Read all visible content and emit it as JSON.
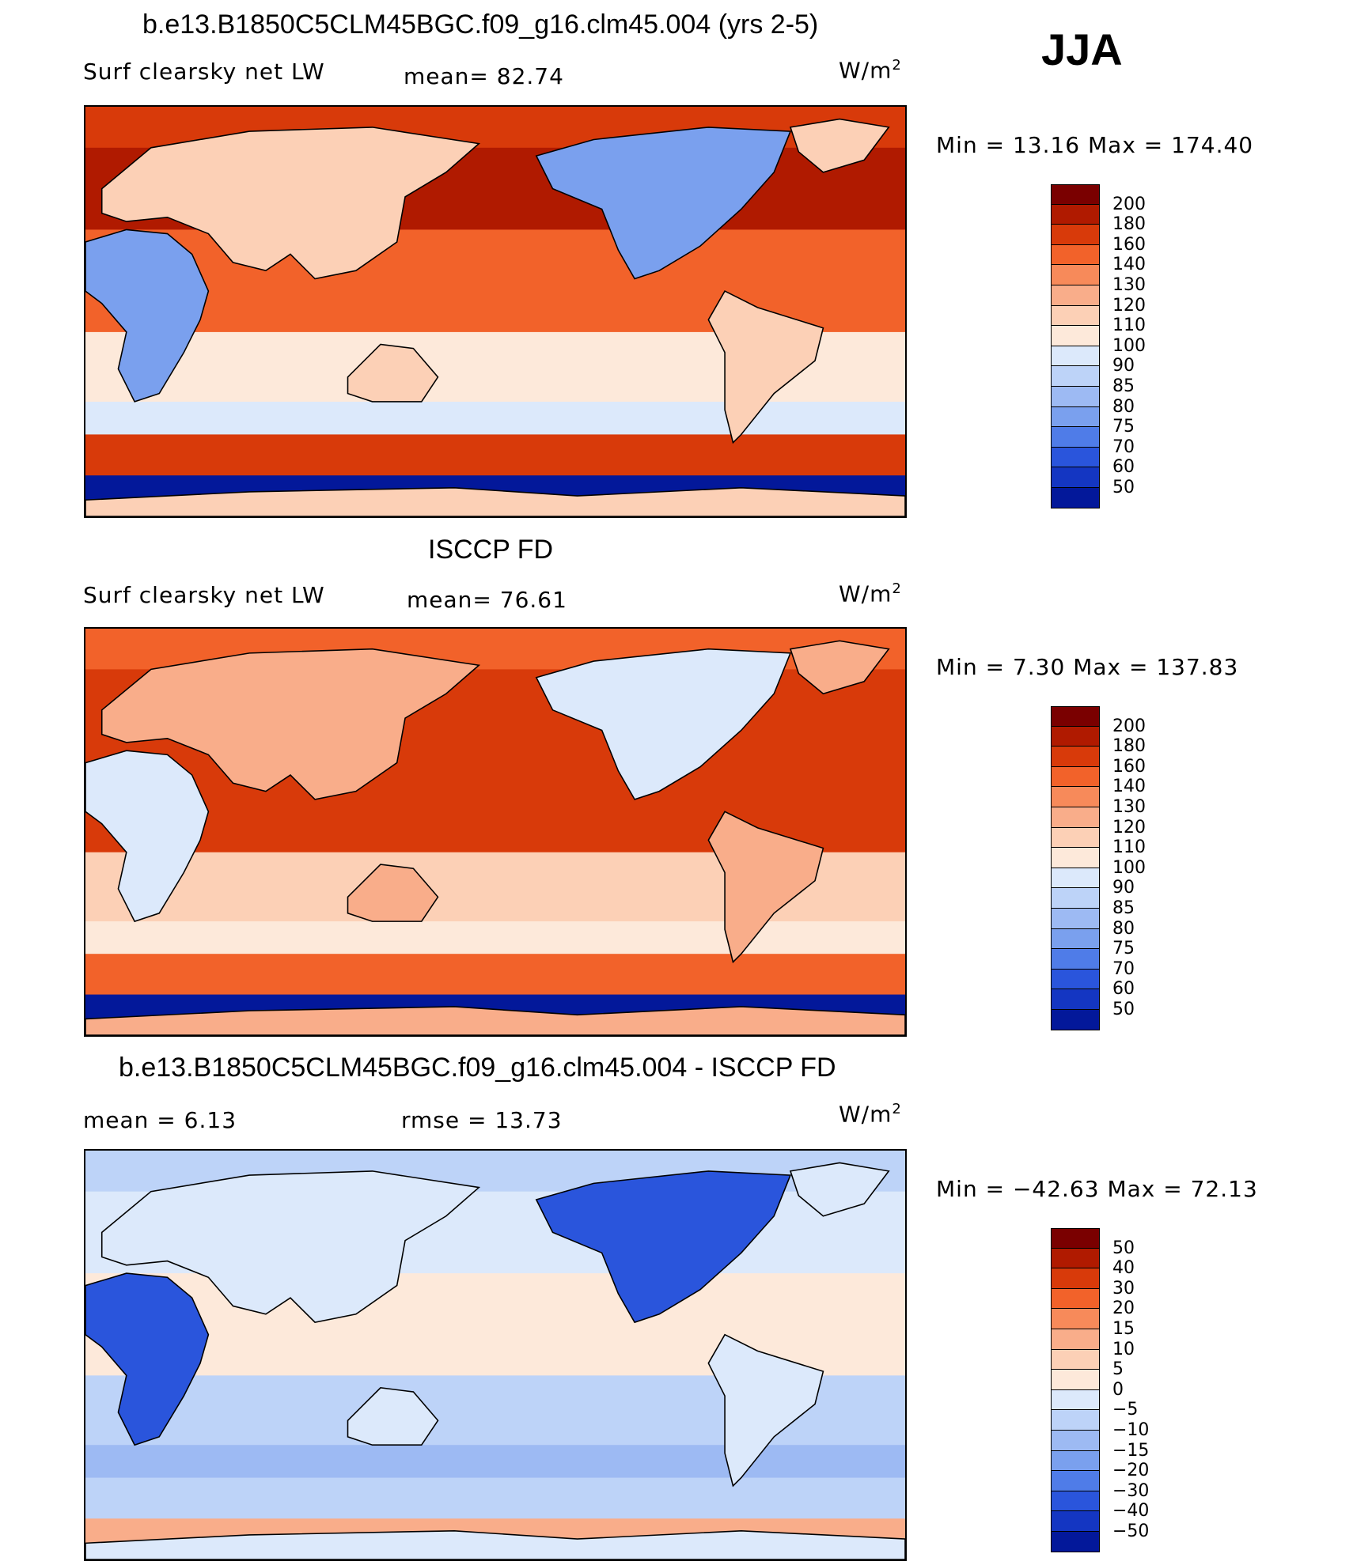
{
  "header": {
    "season": "JJA"
  },
  "panels": [
    {
      "title": "b.e13.B1850C5CLM45BGC.f09_g16.clm45.004 (yrs 2-5)",
      "left_label": "Surf clearsky net LW",
      "mid_label": "mean=  82.74",
      "units": "W/m",
      "units_sup": "2",
      "minmax": "Min =   13.16 Max = 174.40",
      "colorbar_id": "main"
    },
    {
      "title": "ISCCP FD",
      "left_label": "Surf clearsky net LW",
      "mid_label": "mean=  76.61",
      "units": "W/m",
      "units_sup": "2",
      "minmax": "Min =    7.30 Max = 137.83",
      "colorbar_id": "main"
    },
    {
      "title": "b.e13.B1850C5CLM45BGC.f09_g16.clm45.004 - ISCCP FD",
      "left_label": "mean =    6.13",
      "mid_label": "rmse =   13.73",
      "units": "W/m",
      "units_sup": "2",
      "minmax": "Min = −42.63 Max =   72.13",
      "colorbar_id": "diff"
    }
  ],
  "colorbars": {
    "main": {
      "labels": [
        "200",
        "180",
        "160",
        "140",
        "130",
        "120",
        "110",
        "100",
        "90",
        "85",
        "80",
        "75",
        "70",
        "60",
        "50"
      ],
      "colors": [
        "#7a0000",
        "#b01a00",
        "#d83a0a",
        "#f2622a",
        "#f78a5a",
        "#f9ad8a",
        "#fcd0b6",
        "#fde9da",
        "#dce9fb",
        "#bdd3f8",
        "#9dbaf3",
        "#7aa0ee",
        "#4f7ce8",
        "#2a55dc",
        "#1436c2",
        "#03189a"
      ]
    },
    "diff": {
      "labels": [
        "50",
        "40",
        "30",
        "20",
        "15",
        "10",
        "5",
        "0",
        "−5",
        "−10",
        "−15",
        "−20",
        "−30",
        "−40",
        "−50"
      ],
      "colors": [
        "#7a0000",
        "#b01a00",
        "#d83a0a",
        "#f2622a",
        "#f78a5a",
        "#f9ad8a",
        "#fcd0b6",
        "#fde9da",
        "#dce9fb",
        "#bdd3f8",
        "#9dbaf3",
        "#7aa0ee",
        "#4f7ce8",
        "#2a55dc",
        "#1436c2",
        "#03189a"
      ]
    }
  },
  "maps": [
    {
      "region_levels": {
        "ocean_high_lat_south": 0,
        "ocean_midlat": 13,
        "ocean_tropics": 12,
        "ocean_subtropics_south": 8,
        "land_desert": 4,
        "land_other": 9
      }
    },
    {
      "region_levels": {
        "ocean_high_lat_south": 0,
        "ocean_midlat": 12,
        "ocean_tropics": 13,
        "ocean_subtropics_south": 9,
        "land_desert": 7,
        "land_other": 10
      }
    },
    {
      "region_levels": {
        "ocean_high_lat_south": 10,
        "ocean_midlat": 6,
        "ocean_tropics": 8,
        "ocean_subtropics_south": 6,
        "land_desert": 2,
        "land_other": 7
      }
    }
  ]
}
